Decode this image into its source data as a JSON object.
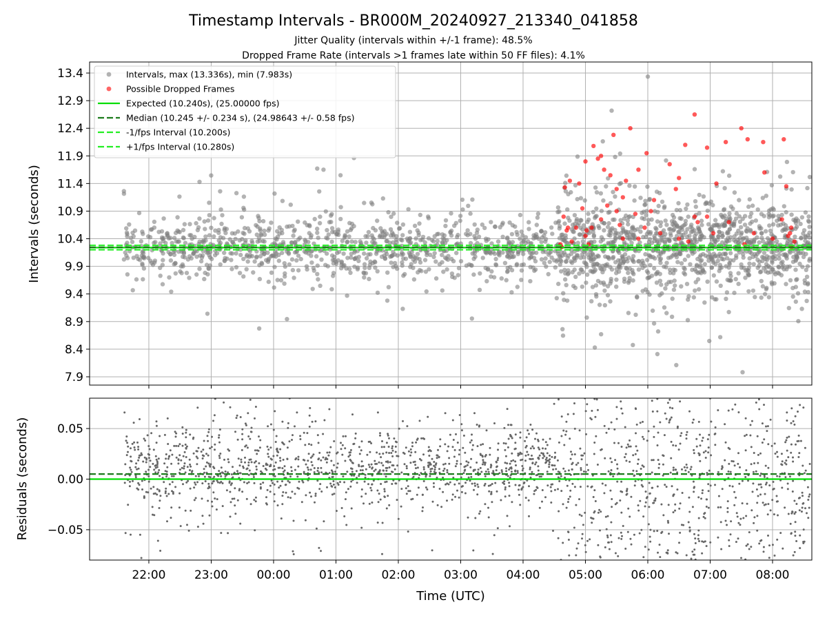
{
  "figure": {
    "title": "Timestamp Intervals - BR000M_20240927_213340_041858",
    "subtitle1": "Jitter Quality (intervals within +/-1 frame): 48.5%",
    "subtitle2": "Dropped Frame Rate (intervals >1 frames late within 50 FF files): 4.1%"
  },
  "colors": {
    "interval_points": "#808080",
    "dropped_points": "#ff0000",
    "expected_line": "#00dd00",
    "median_line": "#1a7a1a",
    "fps_interval_lines": "#22ee22",
    "residual_points": "#666666",
    "grid": "#b0b0b0"
  },
  "chart_data": [
    {
      "type": "scatter",
      "ylabel": "Intervals (seconds)",
      "x_range_hours": [
        -2.95,
        8.63
      ],
      "ylim": [
        7.75,
        13.6
      ],
      "yticks": [
        7.9,
        8.4,
        8.9,
        9.4,
        9.9,
        10.4,
        10.9,
        11.4,
        11.9,
        12.4,
        12.9,
        13.4
      ],
      "grid": true,
      "legend_position": "top-left",
      "legend": [
        {
          "label": "Intervals, max (13.336s), min (7.983s)",
          "marker": "circle",
          "color": "#808080"
        },
        {
          "label": "Possible Dropped Frames",
          "marker": "circle",
          "color": "#ff0000"
        },
        {
          "label": "Expected (10.240s), (25.00000 fps)",
          "line": "solid",
          "color": "#00dd00"
        },
        {
          "label": "Median (10.245 +/- 0.234 s), (24.98643 +/- 0.58 fps)",
          "line": "dashed",
          "color": "#1a7a1a"
        },
        {
          "label": "-1/fps Interval (10.200s)",
          "line": "dashed",
          "color": "#22ee22"
        },
        {
          "label": "+1/fps Interval (10.280s)",
          "line": "dashed",
          "color": "#22ee22"
        }
      ],
      "reference_lines": {
        "expected": 10.24,
        "median": 10.245,
        "minus_1fps": 10.2,
        "plus_1fps": 10.28
      },
      "time_range_hours": [
        -2.4,
        8.6
      ],
      "mean_interval": 10.24,
      "series": [
        {
          "name": "Intervals, max (13.336s), min (7.983s)",
          "count_estimate": 2200,
          "max": 13.336,
          "min": 7.983,
          "notable_points": [
            [
              6.0,
              13.336
            ],
            [
              7.52,
              7.983
            ],
            [
              5.15,
              8.43
            ],
            [
              5.42,
              12.72
            ],
            [
              0.7,
              11.67
            ],
            [
              0.8,
              11.65
            ]
          ]
        },
        {
          "name": "Possible Dropped Frames",
          "points": [
            [
              4.67,
              11.33
            ],
            [
              4.75,
              11.45
            ],
            [
              4.9,
              11.4
            ],
            [
              5.0,
              11.8
            ],
            [
              5.13,
              12.08
            ],
            [
              5.2,
              11.85
            ],
            [
              5.25,
              11.9
            ],
            [
              5.3,
              11.65
            ],
            [
              5.4,
              11.55
            ],
            [
              5.45,
              12.28
            ],
            [
              5.5,
              11.3
            ],
            [
              5.6,
              11.15
            ],
            [
              5.65,
              11.45
            ],
            [
              5.72,
              12.4
            ],
            [
              5.85,
              11.65
            ],
            [
              5.98,
              11.95
            ],
            [
              6.1,
              11.1
            ],
            [
              6.35,
              11.75
            ],
            [
              6.45,
              11.3
            ],
            [
              6.5,
              11.5
            ],
            [
              6.6,
              12.1
            ],
            [
              6.75,
              12.65
            ],
            [
              6.95,
              12.05
            ],
            [
              7.1,
              11.4
            ],
            [
              7.25,
              12.15
            ],
            [
              7.5,
              12.4
            ],
            [
              7.6,
              12.2
            ],
            [
              7.85,
              12.15
            ],
            [
              7.87,
              11.6
            ],
            [
              8.18,
              12.2
            ],
            [
              8.22,
              11.35
            ],
            [
              8.28,
              10.5
            ],
            [
              4.6,
              10.3
            ],
            [
              4.65,
              10.8
            ],
            [
              4.7,
              10.55
            ],
            [
              4.72,
              10.6
            ],
            [
              4.78,
              10.35
            ],
            [
              4.85,
              10.6
            ],
            [
              4.95,
              10.95
            ],
            [
              5.0,
              10.45
            ],
            [
              5.05,
              10.3
            ],
            [
              5.1,
              10.6
            ],
            [
              5.25,
              10.75
            ],
            [
              5.35,
              11.0
            ],
            [
              5.5,
              10.9
            ],
            [
              5.55,
              10.65
            ],
            [
              5.6,
              10.4
            ],
            [
              5.8,
              10.85
            ],
            [
              5.85,
              10.4
            ],
            [
              5.95,
              10.6
            ],
            [
              6.05,
              10.9
            ],
            [
              6.2,
              10.5
            ],
            [
              6.5,
              10.4
            ],
            [
              6.65,
              10.35
            ],
            [
              6.75,
              10.8
            ],
            [
              6.8,
              10.7
            ],
            [
              6.95,
              10.8
            ],
            [
              7.05,
              10.5
            ],
            [
              7.3,
              10.7
            ],
            [
              7.55,
              10.3
            ],
            [
              7.7,
              10.5
            ],
            [
              8.0,
              10.4
            ],
            [
              8.15,
              10.75
            ],
            [
              8.25,
              10.45
            ],
            [
              8.3,
              10.6
            ],
            [
              8.35,
              10.35
            ],
            [
              8.3,
              10.25
            ],
            [
              4.62,
              10.25
            ],
            [
              5.02,
              10.55
            ]
          ]
        }
      ]
    },
    {
      "type": "scatter",
      "ylabel": "Residuals (seconds)",
      "xlabel": "Time (UTC)",
      "ylim": [
        -0.08,
        0.08
      ],
      "yticks": [
        -0.05,
        0.0,
        0.05
      ],
      "ytick_labels": [
        "−0.05",
        "0.00",
        "0.05"
      ],
      "xticks_hours": [
        -2,
        -1,
        0,
        1,
        2,
        3,
        4,
        5,
        6,
        7,
        8
      ],
      "xtick_labels": [
        "22:00",
        "23:00",
        "00:00",
        "01:00",
        "02:00",
        "03:00",
        "04:00",
        "05:00",
        "06:00",
        "07:00",
        "08:00"
      ],
      "grid": true,
      "reference_lines": {
        "zero": 0.0,
        "median_offset": 0.005
      },
      "series": [
        {
          "name": "Residuals",
          "count_estimate": 2000
        }
      ]
    }
  ]
}
